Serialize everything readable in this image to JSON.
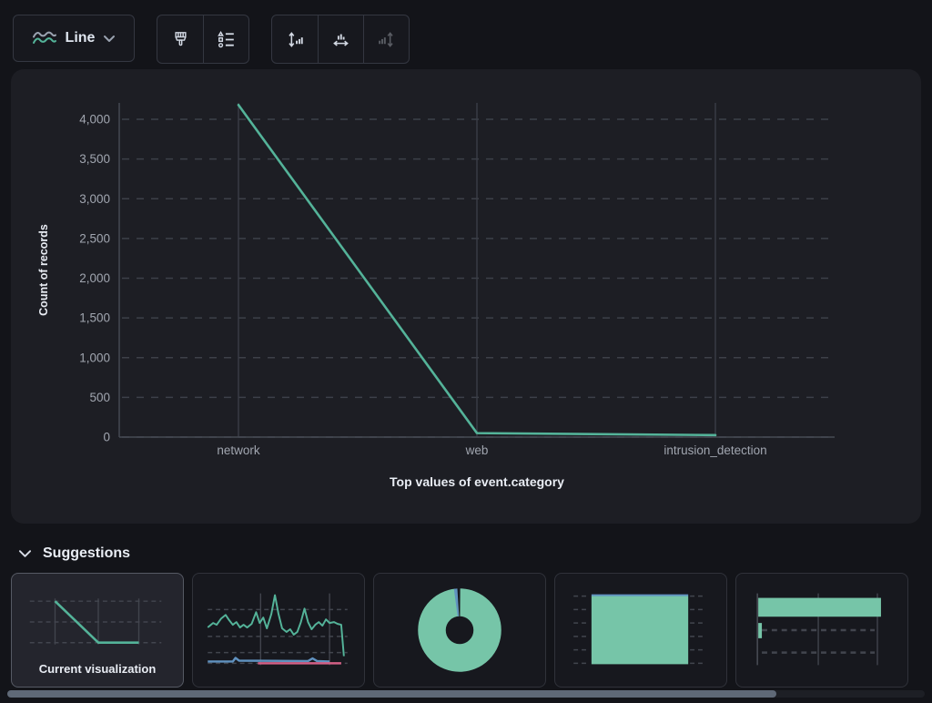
{
  "toolbar": {
    "chart_type_label": "Line",
    "icons": {
      "chart_type": "line-chart-icon",
      "appearance": "paintbrush-icon",
      "visual_options": "visual-options-icon",
      "left_axis": "left-axis-icon",
      "bottom_axis": "bottom-axis-icon",
      "right_axis": "right-axis-icon"
    },
    "right_axis_disabled": true
  },
  "chart_data": {
    "type": "line",
    "categories": [
      "network",
      "web",
      "intrusion_detection"
    ],
    "values": [
      4180,
      50,
      25
    ],
    "series": [
      {
        "name": "Count of records",
        "values": [
          4180,
          50,
          25
        ]
      }
    ],
    "title": "",
    "xlabel": "Top values of event.category",
    "ylabel": "Count of records",
    "ylim": [
      0,
      4000
    ],
    "yticks": [
      0,
      500,
      1000,
      1500,
      2000,
      2500,
      3000,
      3500,
      4000
    ],
    "grid": true,
    "legend": false
  },
  "suggestions": {
    "heading": "Suggestions",
    "cards": [
      {
        "label": "Current visualization",
        "type": "line",
        "selected": true
      },
      {
        "label": "",
        "type": "line-time-series",
        "selected": false
      },
      {
        "label": "",
        "type": "donut",
        "selected": false
      },
      {
        "label": "",
        "type": "bar-vertical-stacked",
        "selected": false
      },
      {
        "label": "",
        "type": "bar-horizontal",
        "selected": false
      }
    ]
  },
  "colors": {
    "line_green": "#54B399",
    "fill_green": "#76C5A8",
    "series_blue": "#6092C0",
    "series_pink": "#D36086"
  }
}
